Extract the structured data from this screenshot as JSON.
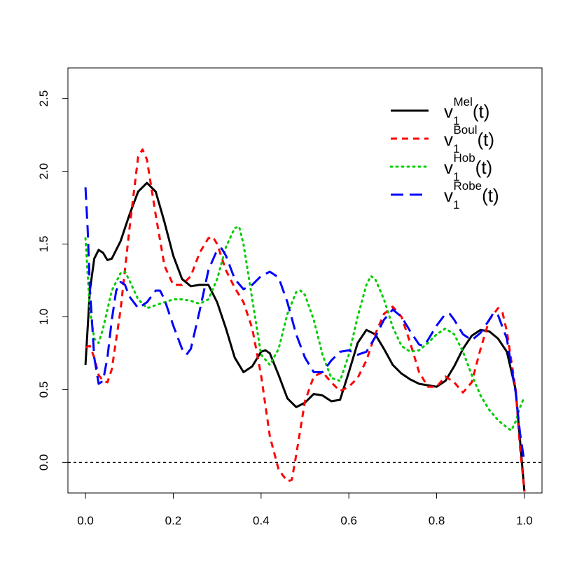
{
  "chart_data": {
    "type": "line",
    "title": "",
    "xlabel": "",
    "ylabel": "",
    "xlim": [
      -0.04,
      1.04
    ],
    "ylim": [
      -0.21,
      2.71
    ],
    "x_ticks": [
      0.0,
      0.2,
      0.4,
      0.6,
      0.8,
      1.0
    ],
    "x_tick_labels": [
      "0.0",
      "0.2",
      "0.4",
      "0.6",
      "0.8",
      "1.0"
    ],
    "y_ticks": [
      0.0,
      0.5,
      1.0,
      1.5,
      2.0,
      2.5
    ],
    "y_tick_labels": [
      "0.0",
      "0.5",
      "1.0",
      "1.5",
      "2.0",
      "2.5"
    ],
    "grid": false,
    "legend_position": "top-right",
    "reference_line": {
      "y": 0,
      "style": "dashed",
      "color": "#000000"
    },
    "series": [
      {
        "legend": {
          "base": "v",
          "sub": "1",
          "sup": "Mel",
          "suffix": "(t)"
        },
        "color": "#000000",
        "dash": "solid",
        "points": [
          [
            0.0,
            0.67
          ],
          [
            0.01,
            1.18
          ],
          [
            0.02,
            1.4
          ],
          [
            0.03,
            1.46
          ],
          [
            0.04,
            1.44
          ],
          [
            0.05,
            1.39
          ],
          [
            0.06,
            1.4
          ],
          [
            0.08,
            1.52
          ],
          [
            0.1,
            1.7
          ],
          [
            0.12,
            1.86
          ],
          [
            0.14,
            1.92
          ],
          [
            0.16,
            1.86
          ],
          [
            0.18,
            1.65
          ],
          [
            0.2,
            1.42
          ],
          [
            0.22,
            1.26
          ],
          [
            0.24,
            1.21
          ],
          [
            0.26,
            1.22
          ],
          [
            0.28,
            1.22
          ],
          [
            0.3,
            1.1
          ],
          [
            0.32,
            0.92
          ],
          [
            0.34,
            0.72
          ],
          [
            0.36,
            0.62
          ],
          [
            0.38,
            0.66
          ],
          [
            0.4,
            0.76
          ],
          [
            0.41,
            0.77
          ],
          [
            0.42,
            0.75
          ],
          [
            0.44,
            0.6
          ],
          [
            0.46,
            0.44
          ],
          [
            0.48,
            0.38
          ],
          [
            0.5,
            0.41
          ],
          [
            0.52,
            0.47
          ],
          [
            0.54,
            0.46
          ],
          [
            0.56,
            0.42
          ],
          [
            0.58,
            0.43
          ],
          [
            0.6,
            0.62
          ],
          [
            0.62,
            0.82
          ],
          [
            0.64,
            0.91
          ],
          [
            0.66,
            0.88
          ],
          [
            0.68,
            0.78
          ],
          [
            0.7,
            0.67
          ],
          [
            0.72,
            0.61
          ],
          [
            0.74,
            0.57
          ],
          [
            0.76,
            0.54
          ],
          [
            0.78,
            0.53
          ],
          [
            0.8,
            0.52
          ],
          [
            0.82,
            0.56
          ],
          [
            0.84,
            0.66
          ],
          [
            0.86,
            0.78
          ],
          [
            0.88,
            0.87
          ],
          [
            0.9,
            0.91
          ],
          [
            0.92,
            0.9
          ],
          [
            0.94,
            0.85
          ],
          [
            0.96,
            0.76
          ],
          [
            0.98,
            0.5
          ],
          [
            0.99,
            0.15
          ],
          [
            1.0,
            -0.2
          ]
        ]
      },
      {
        "legend": {
          "base": "v",
          "sub": "1",
          "sup": "Boul",
          "suffix": "(t)"
        },
        "color": "#ff0000",
        "dash": "dashed",
        "points": [
          [
            0.0,
            0.79
          ],
          [
            0.01,
            0.8
          ],
          [
            0.02,
            0.72
          ],
          [
            0.03,
            0.6
          ],
          [
            0.04,
            0.56
          ],
          [
            0.05,
            0.55
          ],
          [
            0.06,
            0.64
          ],
          [
            0.08,
            1.05
          ],
          [
            0.1,
            1.6
          ],
          [
            0.12,
            2.1
          ],
          [
            0.13,
            2.15
          ],
          [
            0.14,
            2.08
          ],
          [
            0.16,
            1.7
          ],
          [
            0.18,
            1.35
          ],
          [
            0.2,
            1.22
          ],
          [
            0.22,
            1.22
          ],
          [
            0.24,
            1.28
          ],
          [
            0.26,
            1.44
          ],
          [
            0.28,
            1.54
          ],
          [
            0.29,
            1.55
          ],
          [
            0.3,
            1.5
          ],
          [
            0.32,
            1.32
          ],
          [
            0.34,
            1.2
          ],
          [
            0.36,
            1.1
          ],
          [
            0.38,
            0.92
          ],
          [
            0.4,
            0.6
          ],
          [
            0.42,
            0.18
          ],
          [
            0.44,
            -0.05
          ],
          [
            0.46,
            -0.13
          ],
          [
            0.47,
            -0.12
          ],
          [
            0.48,
            0.05
          ],
          [
            0.5,
            0.42
          ],
          [
            0.52,
            0.59
          ],
          [
            0.54,
            0.62
          ],
          [
            0.56,
            0.55
          ],
          [
            0.58,
            0.49
          ],
          [
            0.6,
            0.52
          ],
          [
            0.62,
            0.58
          ],
          [
            0.64,
            0.7
          ],
          [
            0.66,
            0.88
          ],
          [
            0.68,
            1.02
          ],
          [
            0.7,
            1.07
          ],
          [
            0.72,
            1.0
          ],
          [
            0.74,
            0.82
          ],
          [
            0.76,
            0.62
          ],
          [
            0.78,
            0.52
          ],
          [
            0.8,
            0.52
          ],
          [
            0.82,
            0.59
          ],
          [
            0.84,
            0.55
          ],
          [
            0.86,
            0.48
          ],
          [
            0.88,
            0.55
          ],
          [
            0.9,
            0.78
          ],
          [
            0.92,
            0.98
          ],
          [
            0.94,
            1.06
          ],
          [
            0.95,
            1.03
          ],
          [
            0.96,
            0.9
          ],
          [
            0.98,
            0.5
          ],
          [
            0.99,
            0.1
          ],
          [
            1.0,
            -0.2
          ]
        ]
      },
      {
        "legend": {
          "base": "v",
          "sub": "1",
          "sup": "Hob",
          "suffix": "(t)"
        },
        "color": "#00cd00",
        "dash": "dotted",
        "points": [
          [
            0.0,
            1.54
          ],
          [
            0.01,
            1.05
          ],
          [
            0.02,
            0.85
          ],
          [
            0.03,
            0.82
          ],
          [
            0.04,
            0.92
          ],
          [
            0.06,
            1.18
          ],
          [
            0.08,
            1.3
          ],
          [
            0.09,
            1.31
          ],
          [
            0.1,
            1.25
          ],
          [
            0.12,
            1.12
          ],
          [
            0.14,
            1.06
          ],
          [
            0.16,
            1.08
          ],
          [
            0.18,
            1.1
          ],
          [
            0.2,
            1.12
          ],
          [
            0.22,
            1.12
          ],
          [
            0.24,
            1.11
          ],
          [
            0.26,
            1.09
          ],
          [
            0.28,
            1.12
          ],
          [
            0.3,
            1.26
          ],
          [
            0.32,
            1.48
          ],
          [
            0.34,
            1.61
          ],
          [
            0.35,
            1.62
          ],
          [
            0.36,
            1.5
          ],
          [
            0.38,
            1.12
          ],
          [
            0.4,
            0.74
          ],
          [
            0.42,
            0.67
          ],
          [
            0.44,
            0.78
          ],
          [
            0.46,
            1.02
          ],
          [
            0.48,
            1.17
          ],
          [
            0.49,
            1.18
          ],
          [
            0.5,
            1.15
          ],
          [
            0.52,
            0.98
          ],
          [
            0.54,
            0.74
          ],
          [
            0.56,
            0.58
          ],
          [
            0.58,
            0.56
          ],
          [
            0.6,
            0.74
          ],
          [
            0.62,
            1.0
          ],
          [
            0.64,
            1.22
          ],
          [
            0.65,
            1.28
          ],
          [
            0.66,
            1.26
          ],
          [
            0.68,
            1.12
          ],
          [
            0.7,
            0.93
          ],
          [
            0.72,
            0.8
          ],
          [
            0.74,
            0.76
          ],
          [
            0.76,
            0.77
          ],
          [
            0.78,
            0.82
          ],
          [
            0.8,
            0.88
          ],
          [
            0.82,
            0.92
          ],
          [
            0.84,
            0.88
          ],
          [
            0.86,
            0.76
          ],
          [
            0.88,
            0.6
          ],
          [
            0.9,
            0.46
          ],
          [
            0.92,
            0.36
          ],
          [
            0.94,
            0.29
          ],
          [
            0.96,
            0.24
          ],
          [
            0.97,
            0.22
          ],
          [
            0.98,
            0.28
          ],
          [
            0.99,
            0.38
          ],
          [
            1.0,
            0.45
          ]
        ]
      },
      {
        "legend": {
          "base": "v",
          "sub": "1",
          "sup": "Robe",
          "suffix": "(t)"
        },
        "color": "#0000ff",
        "dash": "longdash",
        "points": [
          [
            0.0,
            1.89
          ],
          [
            0.005,
            1.6
          ],
          [
            0.01,
            1.2
          ],
          [
            0.02,
            0.72
          ],
          [
            0.03,
            0.54
          ],
          [
            0.04,
            0.56
          ],
          [
            0.05,
            0.72
          ],
          [
            0.06,
            0.98
          ],
          [
            0.07,
            1.18
          ],
          [
            0.08,
            1.24
          ],
          [
            0.09,
            1.22
          ],
          [
            0.1,
            1.14
          ],
          [
            0.12,
            1.06
          ],
          [
            0.14,
            1.1
          ],
          [
            0.16,
            1.18
          ],
          [
            0.17,
            1.18
          ],
          [
            0.18,
            1.12
          ],
          [
            0.2,
            0.94
          ],
          [
            0.22,
            0.78
          ],
          [
            0.23,
            0.74
          ],
          [
            0.24,
            0.78
          ],
          [
            0.26,
            1.04
          ],
          [
            0.28,
            1.32
          ],
          [
            0.3,
            1.46
          ],
          [
            0.31,
            1.47
          ],
          [
            0.32,
            1.42
          ],
          [
            0.34,
            1.26
          ],
          [
            0.36,
            1.19
          ],
          [
            0.38,
            1.22
          ],
          [
            0.4,
            1.28
          ],
          [
            0.42,
            1.31
          ],
          [
            0.44,
            1.27
          ],
          [
            0.46,
            1.1
          ],
          [
            0.48,
            0.88
          ],
          [
            0.5,
            0.72
          ],
          [
            0.52,
            0.62
          ],
          [
            0.54,
            0.62
          ],
          [
            0.56,
            0.7
          ],
          [
            0.58,
            0.76
          ],
          [
            0.6,
            0.77
          ],
          [
            0.62,
            0.74
          ],
          [
            0.64,
            0.76
          ],
          [
            0.66,
            0.86
          ],
          [
            0.68,
            0.98
          ],
          [
            0.7,
            1.05
          ],
          [
            0.72,
            1.0
          ],
          [
            0.74,
            0.9
          ],
          [
            0.76,
            0.81
          ],
          [
            0.77,
            0.8
          ],
          [
            0.78,
            0.84
          ],
          [
            0.8,
            0.94
          ],
          [
            0.82,
            1.02
          ],
          [
            0.83,
            1.02
          ],
          [
            0.84,
            0.98
          ],
          [
            0.86,
            0.88
          ],
          [
            0.88,
            0.84
          ],
          [
            0.9,
            0.89
          ],
          [
            0.92,
            0.98
          ],
          [
            0.93,
            1.03
          ],
          [
            0.94,
            1.01
          ],
          [
            0.96,
            0.85
          ],
          [
            0.98,
            0.48
          ],
          [
            0.99,
            0.2
          ],
          [
            1.0,
            0.0
          ]
        ]
      }
    ]
  }
}
